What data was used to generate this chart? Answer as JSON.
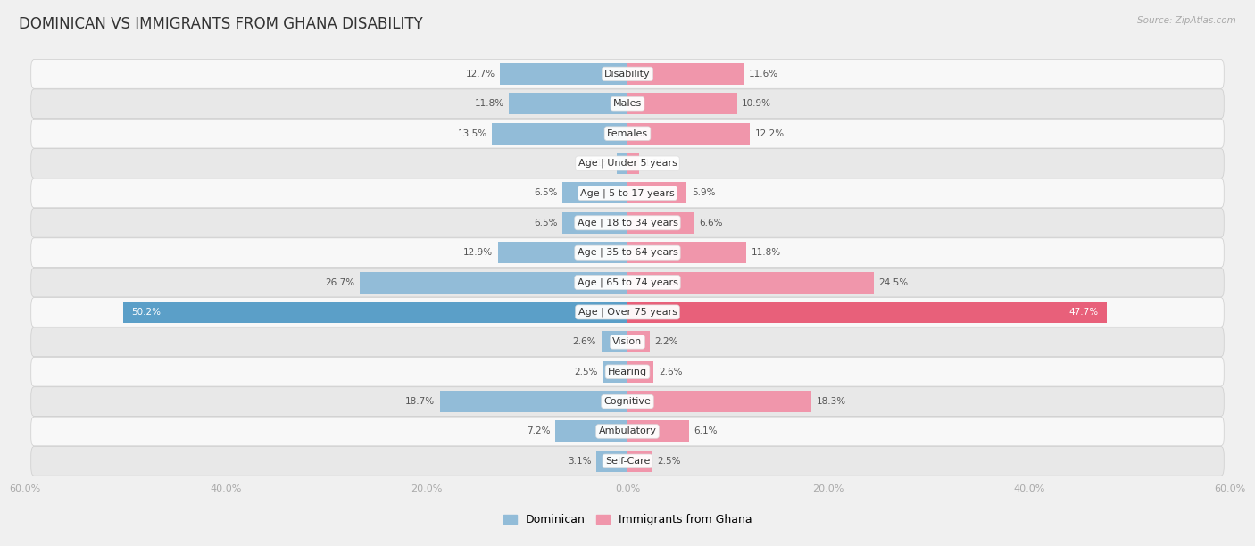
{
  "title": "DOMINICAN VS IMMIGRANTS FROM GHANA DISABILITY",
  "source": "Source: ZipAtlas.com",
  "categories": [
    "Disability",
    "Males",
    "Females",
    "Age | Under 5 years",
    "Age | 5 to 17 years",
    "Age | 18 to 34 years",
    "Age | 35 to 64 years",
    "Age | 65 to 74 years",
    "Age | Over 75 years",
    "Vision",
    "Hearing",
    "Cognitive",
    "Ambulatory",
    "Self-Care"
  ],
  "dominican": [
    12.7,
    11.8,
    13.5,
    1.1,
    6.5,
    6.5,
    12.9,
    26.7,
    50.2,
    2.6,
    2.5,
    18.7,
    7.2,
    3.1
  ],
  "ghana": [
    11.6,
    10.9,
    12.2,
    1.2,
    5.9,
    6.6,
    11.8,
    24.5,
    47.7,
    2.2,
    2.6,
    18.3,
    6.1,
    2.5
  ],
  "dominican_color": "#92bcd8",
  "ghana_color": "#f096ab",
  "dominican_color_bright": "#5b9fc8",
  "ghana_color_bright": "#e8607a",
  "dominican_label": "Dominican",
  "ghana_label": "Immigrants from Ghana",
  "xlim": 60.0,
  "bar_height": 0.72,
  "bg_color": "#f0f0f0",
  "row_odd_color": "#e8e8e8",
  "row_even_color": "#f8f8f8",
  "title_fontsize": 12,
  "label_fontsize": 8.0,
  "value_fontsize": 7.5,
  "axis_label_fontsize": 8.0
}
